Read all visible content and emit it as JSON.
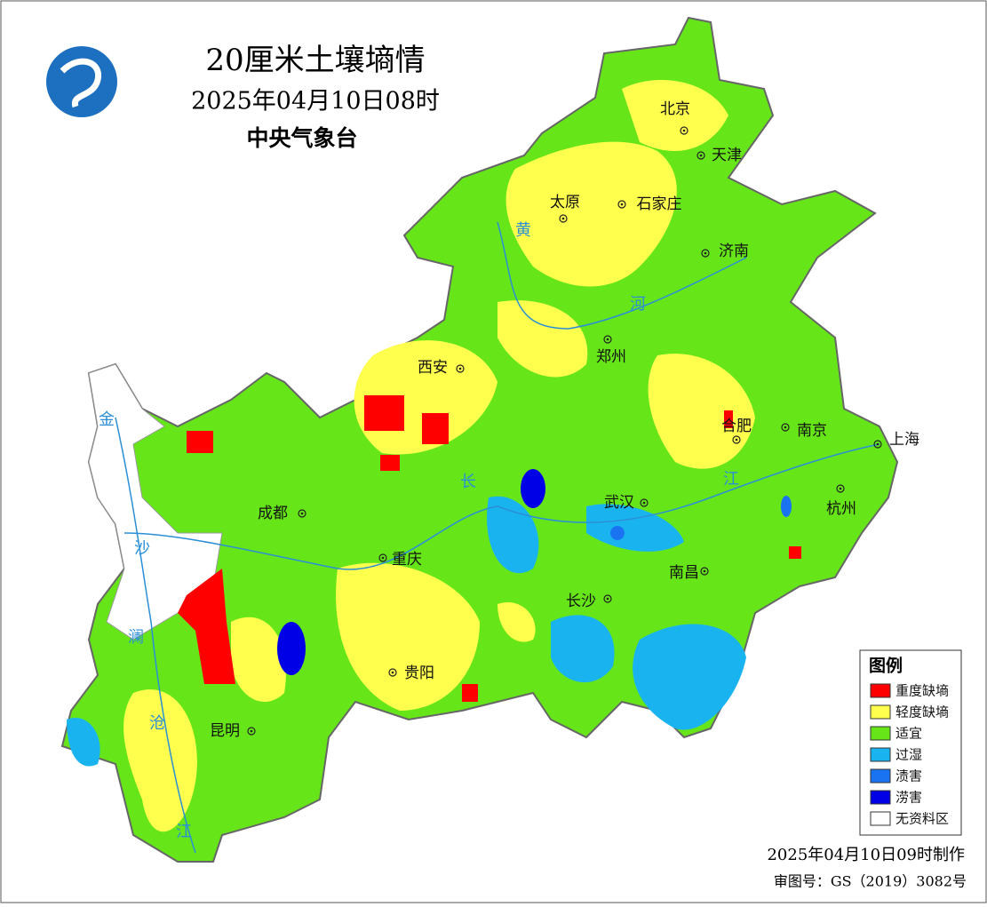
{
  "header": {
    "title": "20厘米土壤墒情",
    "subtitle": "2025年04月10日08时",
    "agency": "中央气象台"
  },
  "cities": [
    "北京",
    "天津",
    "太原",
    "石家庄",
    "济南",
    "西安",
    "郑州",
    "合肥",
    "南京",
    "上海",
    "成都",
    "武汉",
    "杭州",
    "重庆",
    "南昌",
    "长沙",
    "贵阳",
    "昆明"
  ],
  "rivers": [
    "黄",
    "河",
    "长",
    "江",
    "金",
    "沙",
    "澜",
    "沧",
    "江"
  ],
  "legend": {
    "title": "图例",
    "items": [
      {
        "label": "重度缺墒",
        "color": "#ff0000"
      },
      {
        "label": "轻度缺墒",
        "color": "#ffff4d"
      },
      {
        "label": "适宜",
        "color": "#66e619"
      },
      {
        "label": "过湿",
        "color": "#19b4f0"
      },
      {
        "label": "渍害",
        "color": "#1a73f0"
      },
      {
        "label": "涝害",
        "color": "#0000e6"
      },
      {
        "label": "无资料区",
        "color": "#ffffff"
      }
    ]
  },
  "footer": {
    "made": "2025年04月10日09时制作",
    "approval": "审图号：GS（2019）3082号"
  }
}
